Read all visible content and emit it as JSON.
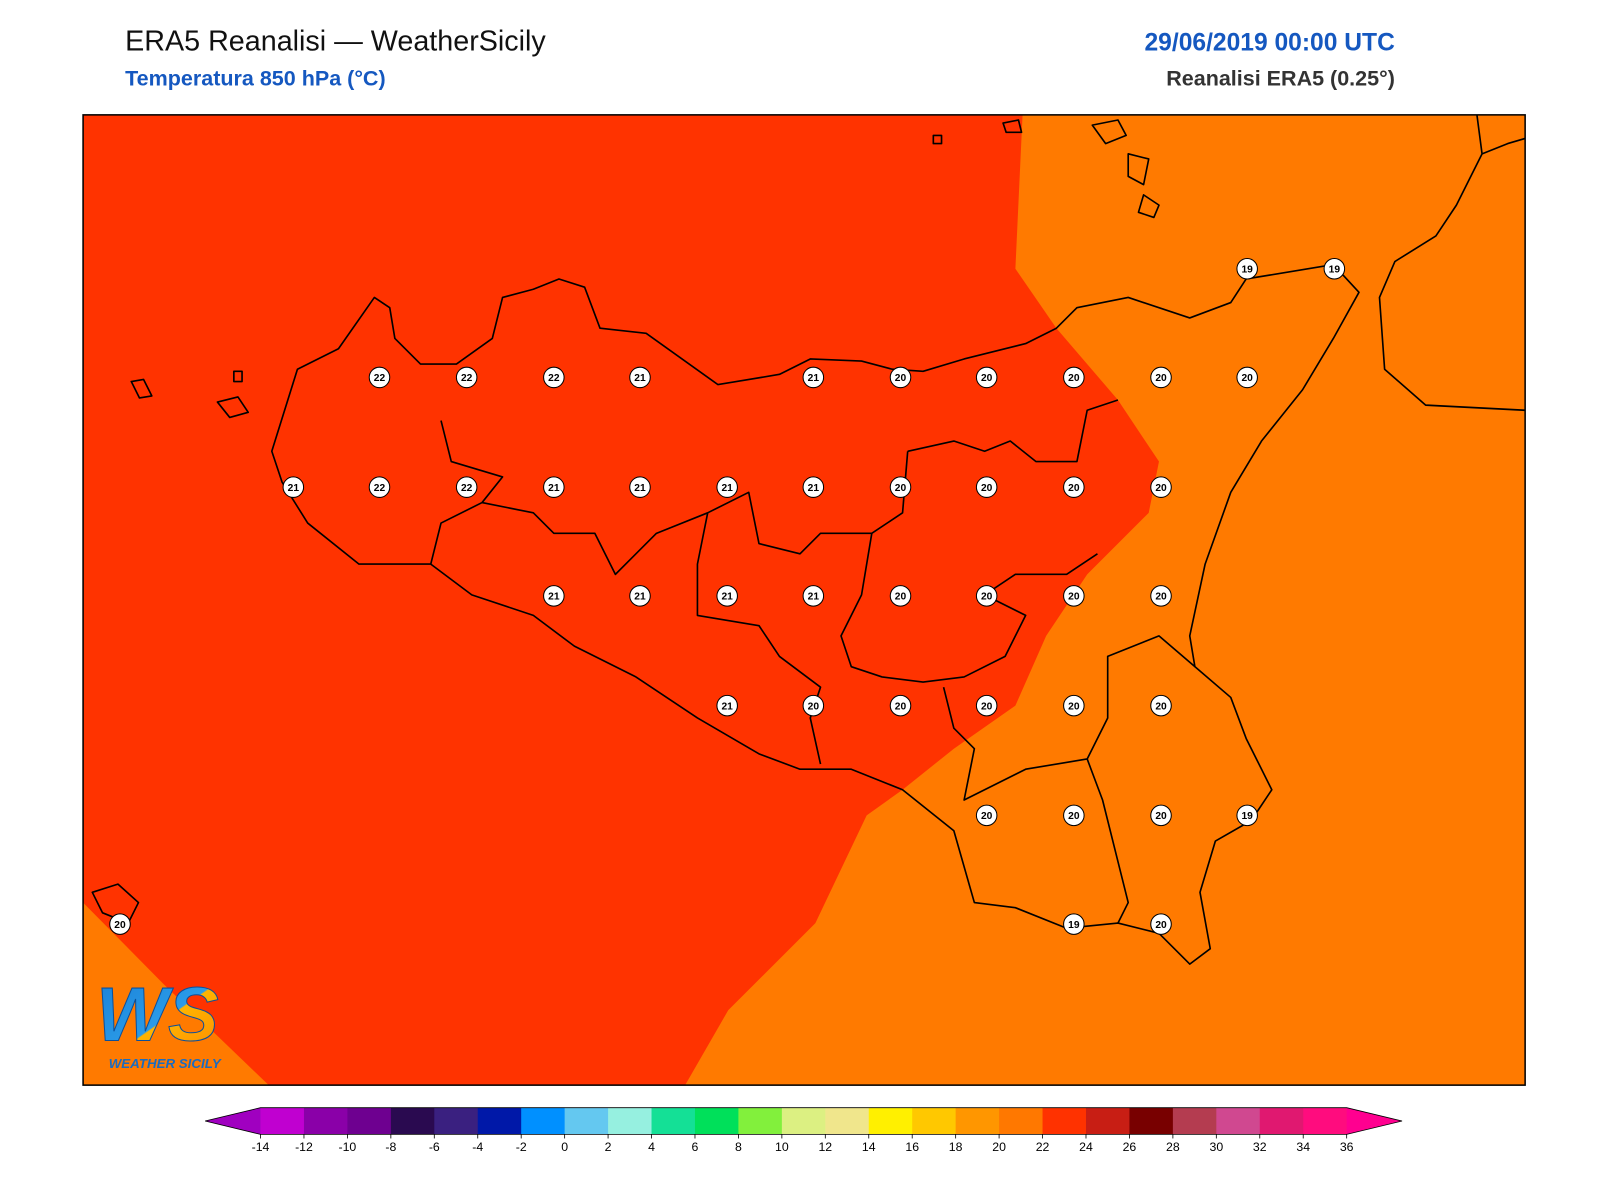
{
  "header": {
    "title": "ERA5 Reanalisi — WeatherSicily",
    "subtitle": "Temperatura 850 hPa (°C)",
    "date": "29/06/2019 00:00 UTC",
    "source": "Reanalisi ERA5 (0.25°)"
  },
  "map": {
    "stations": [
      19,
      19,
      22,
      22,
      22,
      21,
      21,
      20,
      20,
      20,
      20,
      20,
      21,
      22,
      22,
      21,
      21,
      21,
      21,
      20,
      20,
      20,
      20,
      21,
      21,
      21,
      21,
      20,
      20,
      20,
      20,
      21,
      20,
      20,
      20,
      20,
      20,
      20,
      20,
      20,
      19,
      20,
      19,
      20
    ],
    "fill_colors": [
      "#ff3300",
      "#ff7a00"
    ]
  },
  "logo": {
    "mark": "WS",
    "name": "WEATHER SICILY"
  },
  "colorbar": {
    "ticks": [
      -14,
      -12,
      -10,
      -8,
      -6,
      -4,
      -2,
      0,
      2,
      4,
      6,
      8,
      10,
      12,
      14,
      16,
      18,
      20,
      22,
      24,
      26,
      28,
      30,
      32,
      34,
      36
    ],
    "colors": [
      "#c000d0",
      "#8a00a8",
      "#6e0090",
      "#2a0a50",
      "#3a2080",
      "#0018a8",
      "#0090ff",
      "#64c8f0",
      "#96f0e0",
      "#14e096",
      "#00e05a",
      "#82f03c",
      "#dcf082",
      "#f0e68c",
      "#fff000",
      "#ffc800",
      "#ff9600",
      "#ff7800",
      "#ff3200",
      "#c81e14",
      "#780000",
      "#b43c50",
      "#d04890",
      "#e01870",
      "#ff0c7e"
    ],
    "under": "#a000c0",
    "over": "#ff0090"
  }
}
